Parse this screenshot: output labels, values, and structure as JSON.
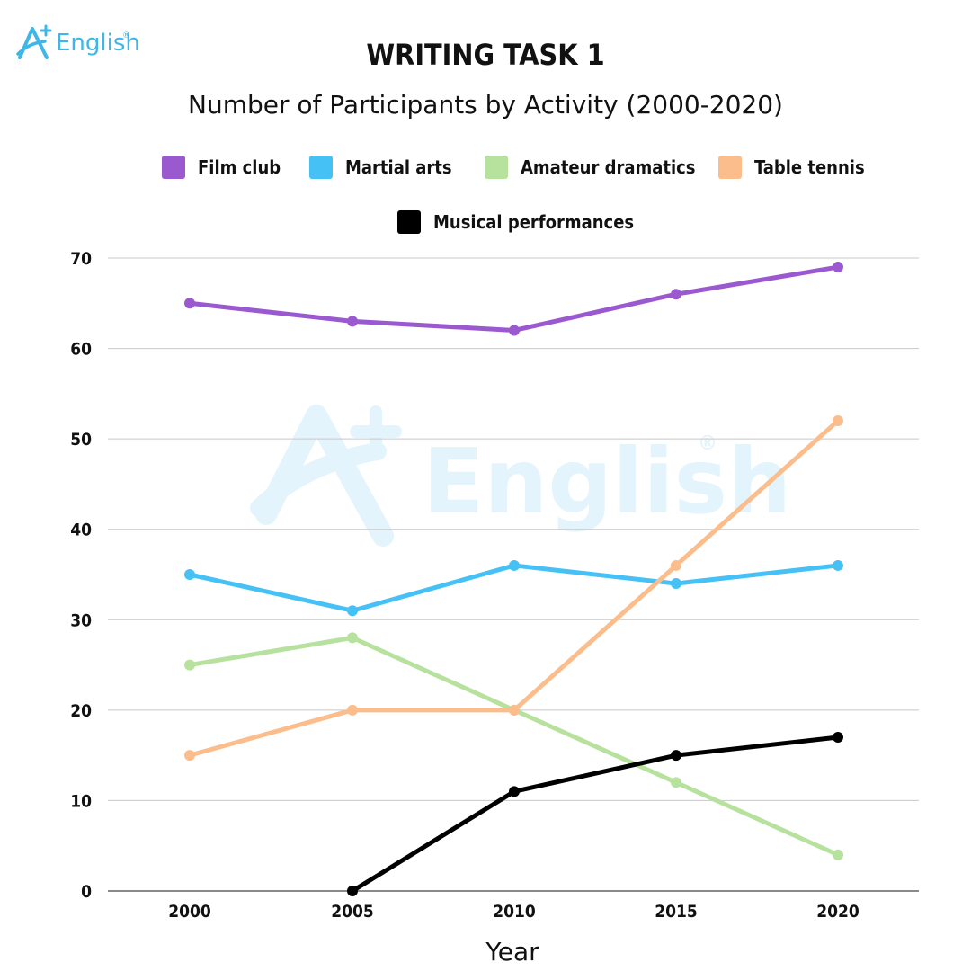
{
  "brand": {
    "logo_text": "English",
    "registered": "®"
  },
  "colors": {
    "Film club": "#9b59d0",
    "Martial arts": "#45c1f6",
    "Amateur dramatics": "#b7e29d",
    "Table tennis": "#fbbd8b",
    "Musical performances": "#000000",
    "grid": "#c8c8c8",
    "brand": "#3fb6ea",
    "watermark": "#e3f4fc"
  },
  "chart_data": {
    "type": "line",
    "title": "WRITING TASK 1",
    "subtitle": "Number of Participants by Activity (2000-2020)",
    "xlabel": "Year",
    "ylabel": "",
    "x": [
      "2000",
      "2005",
      "2010",
      "2015",
      "2020"
    ],
    "ylim": [
      0,
      70
    ],
    "yticks": [
      "0",
      "10",
      "20",
      "30",
      "40",
      "50",
      "60",
      "70"
    ],
    "grid": true,
    "legend_position": "top",
    "series": [
      {
        "name": "Film club",
        "values": [
          65,
          63,
          62,
          66,
          69
        ]
      },
      {
        "name": "Martial arts",
        "values": [
          35,
          31,
          36,
          34,
          36
        ]
      },
      {
        "name": "Amateur dramatics",
        "values": [
          25,
          28,
          20,
          12,
          4
        ]
      },
      {
        "name": "Table tennis",
        "values": [
          15,
          20,
          20,
          36,
          52
        ]
      },
      {
        "name": "Musical performances",
        "values": [
          null,
          0,
          11,
          15,
          17
        ]
      }
    ]
  }
}
